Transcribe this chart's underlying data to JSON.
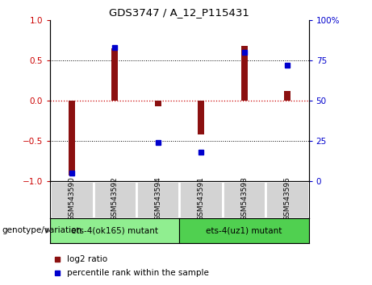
{
  "title": "GDS3747 / A_12_P115431",
  "samples": [
    "GSM543590",
    "GSM543592",
    "GSM543594",
    "GSM543591",
    "GSM543593",
    "GSM543595"
  ],
  "log2_ratio": [
    -0.93,
    0.65,
    -0.07,
    -0.42,
    0.68,
    0.12
  ],
  "percentile_rank": [
    5,
    83,
    24,
    18,
    80,
    72
  ],
  "group1_label": "ets-4(ok165) mutant",
  "group2_label": "ets-4(uz1) mutant",
  "group1_indices": [
    0,
    1,
    2
  ],
  "group2_indices": [
    3,
    4,
    5
  ],
  "group1_color": "#90EE90",
  "group2_color": "#50D050",
  "bar_color": "#8B1010",
  "dot_color": "#0000CD",
  "zero_line_color": "#CC0000",
  "ylim": [
    -1.0,
    1.0
  ],
  "y2lim": [
    0,
    100
  ],
  "yticks": [
    -1.0,
    -0.5,
    0.0,
    0.5,
    1.0
  ],
  "y2ticks": [
    0,
    25,
    50,
    75,
    100
  ],
  "hline_vals": [
    -0.5,
    0.0,
    0.5
  ],
  "bar_width": 0.15,
  "genotype_label": "genotype/variation",
  "legend_label1": "log2 ratio",
  "legend_label2": "percentile rank within the sample"
}
